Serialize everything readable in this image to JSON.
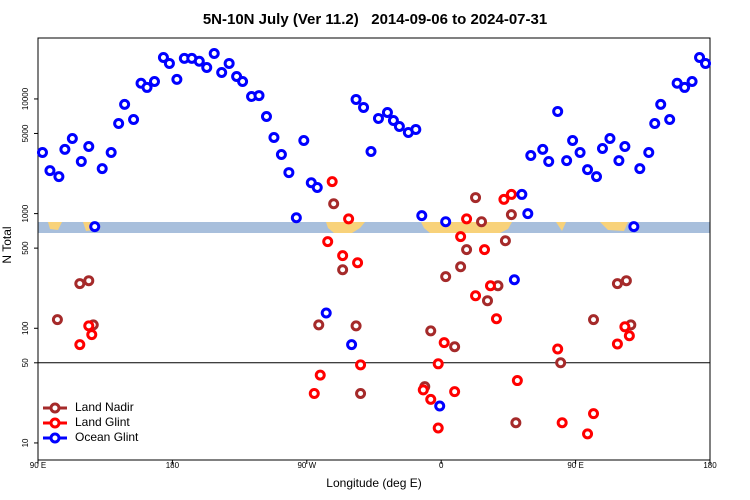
{
  "chart_data": {
    "type": "scatter",
    "title": "5N-10N July (Ver 11.2)   2014-09-06 to 2024-07-31",
    "x_label": "Longitude (deg E)",
    "y_label": "N Total",
    "xlim": [
      90,
      540
    ],
    "xticks": [
      {
        "value": 90,
        "label": "90 E"
      },
      180,
      {
        "value": 270,
        "label": "90 W"
      },
      {
        "value": 360,
        "label": "0"
      },
      {
        "value": 450,
        "label": "90 E"
      },
      {
        "value": 540,
        "label": "180"
      }
    ],
    "ylim": [
      7.1,
      34000
    ],
    "yticks": [
      10,
      50,
      100,
      500,
      1000,
      5000,
      10000
    ],
    "log_y": true,
    "reference_line": 50,
    "legend": "lower left",
    "series": [
      {
        "name": "Land Nadir",
        "color": "#a52a2a",
        "x": [
          103,
          118,
          124,
          127,
          278,
          288,
          294,
          303,
          306,
          349,
          353,
          363,
          369,
          373,
          377,
          383,
          387,
          391,
          398,
          403,
          407,
          410,
          440,
          462,
          478,
          484,
          487
        ],
        "values": [
          119,
          245,
          260,
          107,
          107,
          1220,
          324,
          105,
          27,
          31,
          95,
          282,
          69,
          344,
          485,
          1380,
          850,
          174,
          235,
          580,
          980,
          15,
          50,
          119,
          245,
          260,
          107
        ]
      },
      {
        "name": "Land Glint",
        "color": "#ff0000",
        "x": [
          118,
          124,
          126,
          275,
          279,
          284,
          287,
          294,
          298,
          304,
          306,
          348,
          353,
          358,
          358,
          362,
          369,
          373,
          377,
          383,
          389,
          393,
          397,
          402,
          407,
          411,
          438,
          441,
          458,
          462,
          478,
          483,
          486
        ],
        "values": [
          72,
          105,
          88,
          27,
          39,
          570,
          1900,
          430,
          900,
          373,
          48,
          29,
          24,
          13.5,
          49,
          75,
          28,
          630,
          900,
          192,
          485,
          235,
          121,
          1330,
          1470,
          35,
          66,
          15,
          12,
          18,
          73,
          103,
          86
        ]
      },
      {
        "name": "Ocean Glint",
        "color": "#0000ff",
        "x": [
          93,
          98,
          104,
          108,
          113,
          119,
          124,
          128,
          133,
          139,
          144,
          148,
          154,
          159,
          163,
          168,
          174,
          178,
          183,
          188,
          193,
          198,
          203,
          208,
          213,
          218,
          223,
          227,
          233,
          238,
          243,
          248,
          253,
          258,
          263,
          268,
          273,
          277,
          283,
          300,
          303,
          308,
          313,
          318,
          324,
          328,
          332,
          338,
          343,
          347,
          359,
          363,
          409,
          414,
          418,
          420,
          428,
          432,
          438,
          444,
          448,
          453,
          458,
          464,
          468,
          473,
          479,
          483,
          489,
          493,
          499,
          503,
          507,
          513,
          518,
          523,
          528,
          533,
          537
        ],
        "values": [
          3410,
          2370,
          2100,
          3630,
          4520,
          2850,
          3850,
          770,
          2470,
          3410,
          6110,
          8960,
          6620,
          13700,
          12600,
          14200,
          23000,
          20400,
          14800,
          22600,
          22600,
          21300,
          18800,
          24900,
          17000,
          20400,
          15700,
          14200,
          10500,
          10700,
          7030,
          4610,
          3280,
          2280,
          920,
          4340,
          1860,
          1690,
          136,
          72,
          9900,
          8430,
          3480,
          6760,
          7620,
          6490,
          5750,
          5100,
          5420,
          960,
          21,
          850,
          265,
          1470,
          1000,
          3210,
          3630,
          2850,
          7780,
          2900,
          4340,
          3410,
          2420,
          2100,
          3700,
          4520,
          2900,
          3850,
          770,
          2470,
          3410,
          6110,
          8960,
          6620,
          13700,
          12600,
          14200,
          23000,
          20400
        ]
      }
    ]
  }
}
